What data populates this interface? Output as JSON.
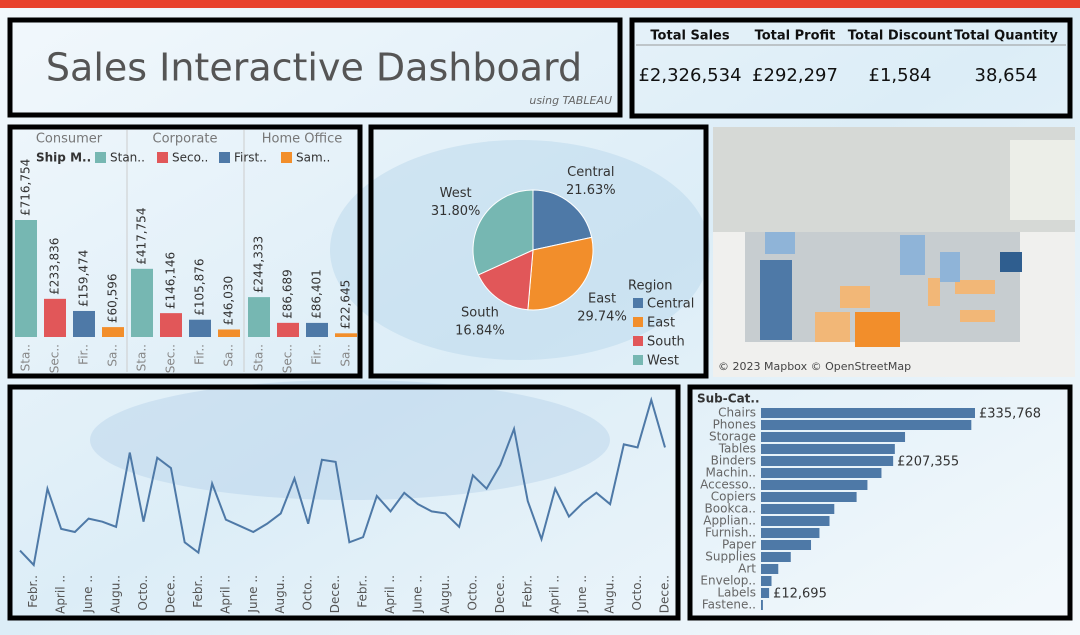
{
  "header": {
    "title": "Sales Interactive Dashboard",
    "subtitle": "using TABLEAU"
  },
  "kpis": [
    {
      "label": "Total Sales",
      "value": "£2,326,534"
    },
    {
      "label": "Total Profit",
      "value": "£292,297"
    },
    {
      "label": "Total Discount",
      "value": "£1,584"
    },
    {
      "label": "Total Quantity",
      "value": "38,654"
    }
  ],
  "map": {
    "attribution": "© 2023 Mapbox © OpenStreetMap"
  },
  "chart_data": [
    {
      "type": "grouped-bar",
      "categories": [
        "Consumer",
        "Corporate",
        "Home Office"
      ],
      "legend_title": "Ship M..",
      "series": [
        {
          "name": "Stan..",
          "bar_label": "Sta..",
          "color": "#76b7b2",
          "values": [
            716754,
            417754,
            244333
          ],
          "value_labels": [
            "£716,754",
            "£417,754",
            "£244,333"
          ]
        },
        {
          "name": "Seco..",
          "bar_label": "Sec..",
          "color": "#e15759",
          "values": [
            233836,
            146146,
            86689
          ],
          "value_labels": [
            "£233,836",
            "£146,146",
            "£86,689"
          ]
        },
        {
          "name": "First..",
          "bar_label": "Fir..",
          "color": "#4e79a7",
          "values": [
            159474,
            105876,
            86401
          ],
          "value_labels": [
            "£159,474",
            "£105,876",
            "£86,401"
          ]
        },
        {
          "name": "Sam..",
          "bar_label": "Sa..",
          "color": "#f28e2b",
          "values": [
            60596,
            46030,
            22645
          ],
          "value_labels": [
            "£60,596",
            "£46,030",
            "£22,645"
          ]
        }
      ]
    },
    {
      "type": "pie",
      "legend_title": "Region",
      "categories": [
        "Central",
        "East",
        "South",
        "West"
      ],
      "values": [
        21.63,
        29.74,
        16.84,
        31.8
      ],
      "value_labels": [
        "21.63%",
        "29.74%",
        "16.84%",
        "31.80%"
      ],
      "colors": [
        "#4e79a7",
        "#f28e2b",
        "#e15759",
        "#76b7b2"
      ]
    },
    {
      "type": "line",
      "color": "#4e79a7",
      "categories": [
        null,
        "Febr..",
        null,
        "April ..",
        null,
        "June ..",
        null,
        "Augu..",
        null,
        "Octo..",
        null,
        "Dece..",
        null,
        "Febr..",
        null,
        "April ..",
        null,
        "June ..",
        null,
        "Augu..",
        null,
        "Octo..",
        null,
        "Dece..",
        null,
        "Febr..",
        null,
        "April ..",
        null,
        "June ..",
        null,
        "Augu..",
        null,
        "Octo..",
        null,
        "Dece..",
        null,
        "Febr..",
        null,
        "April ..",
        null,
        "June ..",
        null,
        "Augu..",
        null,
        "Octo..",
        null,
        "Dece.."
      ],
      "values": [
        31200,
        22800,
        67200,
        43800,
        42000,
        49800,
        48000,
        45000,
        88200,
        48000,
        85200,
        79200,
        36000,
        30000,
        70200,
        49200,
        45600,
        42000,
        46800,
        52800,
        73200,
        46800,
        84000,
        82800,
        36000,
        39000,
        63000,
        54000,
        64800,
        58200,
        54000,
        52800,
        45000,
        75000,
        67200,
        81000,
        102000,
        60000,
        37800,
        67200,
        51000,
        58800,
        64800,
        58200,
        93000,
        91200,
        118800,
        91200
      ]
    },
    {
      "type": "hbar",
      "axis_title": "Sub-Cat..",
      "color": "#4e79a7",
      "categories": [
        "Chairs",
        "Phones",
        "Storage",
        "Tables",
        "Binders",
        "Machin..",
        "Accesso..",
        "Copiers",
        "Bookca..",
        "Applian..",
        "Furnish..",
        "Paper",
        "Supplies",
        "Art",
        "Envelop..",
        "Labels",
        "Fastene.."
      ],
      "values": [
        335768,
        330000,
        226000,
        210000,
        207355,
        189000,
        167000,
        150000,
        115000,
        107500,
        91700,
        78500,
        46700,
        27100,
        16500,
        12695,
        3000
      ],
      "value_labels": [
        "£335,768",
        null,
        null,
        null,
        "£207,355",
        null,
        null,
        null,
        null,
        null,
        null,
        null,
        null,
        null,
        null,
        "£12,695",
        null
      ]
    }
  ]
}
